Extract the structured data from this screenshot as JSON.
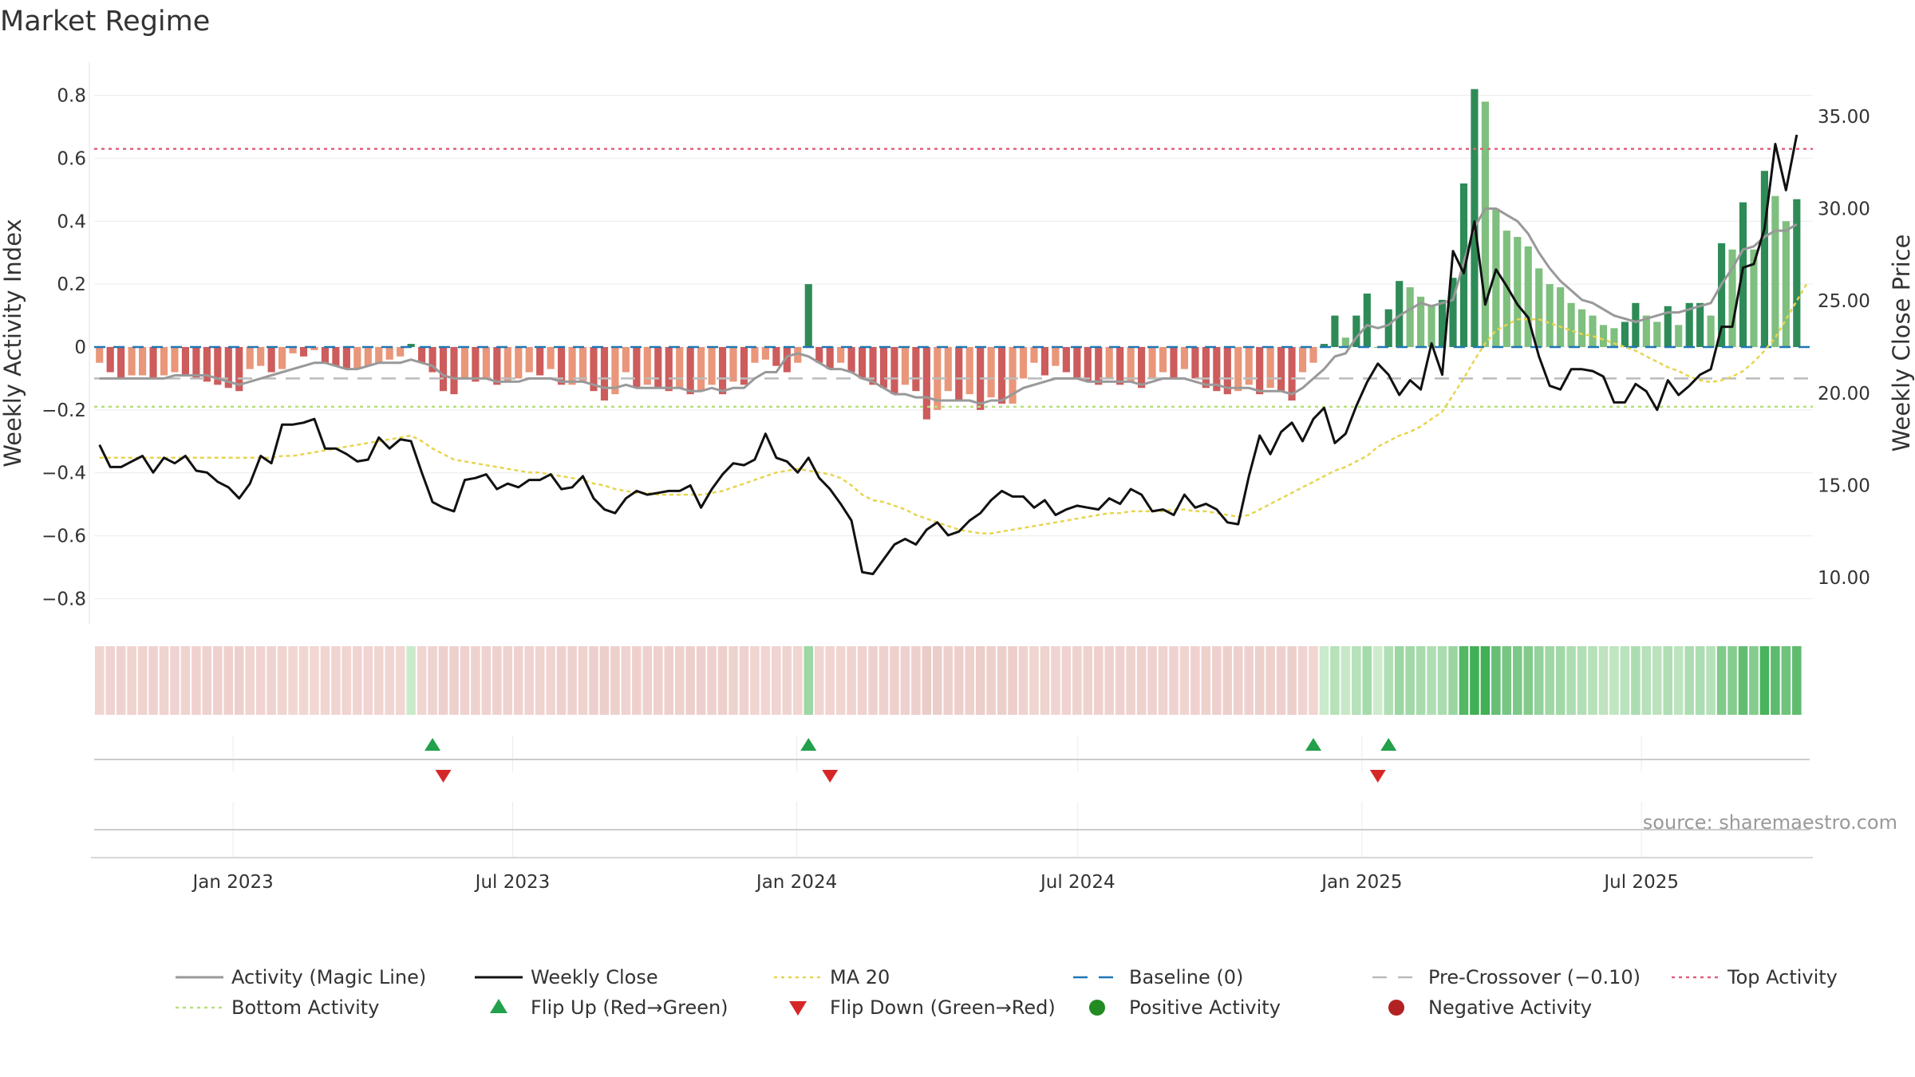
{
  "chart_data": {
    "type": "bar",
    "title": "Market Regime",
    "ylabel": "Weekly Activity Index",
    "y2label": "Weekly Close Price",
    "ylim": [
      -0.88,
      0.88
    ],
    "y2lim": [
      7.5,
      37.5
    ],
    "yticks": [
      0.8,
      0.6,
      0.4,
      0.2,
      0,
      -0.2,
      -0.4,
      -0.6,
      -0.8
    ],
    "ytick_labels": [
      "0.8",
      "0.6",
      "0.4",
      "0.2",
      "0",
      "−0.2",
      "−0.4",
      "−0.6",
      "−0.8"
    ],
    "y2ticks": [
      35,
      30,
      25,
      20,
      15,
      10
    ],
    "y2tick_labels": [
      "35.00",
      "30.00",
      "25.00",
      "20.00",
      "15.00",
      "10.00"
    ],
    "x_start": "2022-10-03",
    "x_end": "2025-10-20",
    "week_count": 160,
    "xtick_labels": [
      "Jan 2023",
      "Jul 2023",
      "Jan 2024",
      "Jul 2024",
      "Jan 2025",
      "Jul 2025"
    ],
    "xtick_dates": [
      "2023-01-01",
      "2023-07-01",
      "2024-01-01",
      "2024-07-01",
      "2025-01-01",
      "2025-07-01"
    ],
    "grid": true,
    "legend_position": "bottom",
    "weekly_close": [
      17.2,
      16.0,
      16.0,
      16.3,
      16.6,
      15.7,
      16.5,
      16.2,
      16.6,
      15.8,
      15.7,
      15.2,
      14.9,
      14.3,
      15.1,
      16.6,
      16.2,
      18.3,
      18.3,
      18.4,
      18.6,
      17.0,
      17.0,
      16.7,
      16.3,
      16.4,
      17.6,
      17.0,
      17.5,
      17.4,
      15.7,
      14.1,
      13.8,
      13.6,
      15.3,
      15.4,
      15.6,
      14.8,
      15.1,
      14.9,
      15.3,
      15.3,
      15.6,
      14.8,
      14.9,
      15.5,
      14.3,
      13.7,
      13.5,
      14.3,
      14.7,
      14.5,
      14.6,
      14.7,
      14.7,
      15.0,
      13.8,
      14.8,
      15.6,
      16.2,
      16.1,
      16.4,
      17.8,
      16.5,
      16.3,
      15.7,
      16.5,
      15.4,
      14.8,
      14.0,
      13.1,
      10.3,
      10.2,
      11.0,
      11.8,
      12.1,
      11.8,
      12.6,
      13.0,
      12.3,
      12.5,
      13.1,
      13.5,
      14.2,
      14.7,
      14.4,
      14.4,
      13.8,
      14.2,
      13.4,
      13.7,
      13.9,
      13.8,
      13.7,
      14.3,
      14.0,
      14.8,
      14.5,
      13.6,
      13.7,
      13.4,
      14.5,
      13.8,
      14.0,
      13.7,
      13.0,
      12.9,
      15.5,
      17.7,
      16.7,
      17.9,
      18.4,
      17.4,
      18.6,
      19.2,
      17.3,
      17.8,
      19.3,
      20.6,
      21.6,
      21.0,
      19.9,
      20.7,
      20.2,
      22.7,
      21.0,
      27.7,
      26.5,
      29.3,
      24.8,
      26.7,
      25.8,
      24.8,
      24.1,
      22.0,
      20.4,
      20.2,
      21.3,
      21.3,
      21.2,
      20.9,
      19.5,
      19.5,
      20.5,
      20.1,
      19.1,
      20.7,
      19.9,
      20.4,
      21.0,
      21.3,
      23.6,
      23.6,
      26.8,
      27.0,
      28.9,
      33.5,
      31.0,
      34.0
    ],
    "activity_index": [
      -0.05,
      -0.08,
      -0.1,
      -0.09,
      -0.09,
      -0.1,
      -0.09,
      -0.08,
      -0.09,
      -0.1,
      -0.11,
      -0.12,
      -0.13,
      -0.14,
      -0.07,
      -0.06,
      -0.08,
      -0.07,
      -0.02,
      -0.03,
      -0.01,
      -0.05,
      -0.06,
      -0.07,
      -0.07,
      -0.06,
      -0.05,
      -0.04,
      -0.03,
      0.01,
      -0.05,
      -0.08,
      -0.14,
      -0.15,
      -0.1,
      -0.11,
      -0.1,
      -0.12,
      -0.11,
      -0.1,
      -0.08,
      -0.09,
      -0.07,
      -0.12,
      -0.12,
      -0.11,
      -0.14,
      -0.17,
      -0.15,
      -0.08,
      -0.13,
      -0.12,
      -0.13,
      -0.14,
      -0.13,
      -0.15,
      -0.14,
      -0.12,
      -0.15,
      -0.11,
      -0.12,
      -0.05,
      -0.04,
      -0.06,
      -0.08,
      -0.05,
      0.2,
      -0.05,
      -0.07,
      -0.05,
      -0.08,
      -0.1,
      -0.12,
      -0.13,
      -0.15,
      -0.12,
      -0.14,
      -0.23,
      -0.2,
      -0.14,
      -0.17,
      -0.15,
      -0.2,
      -0.16,
      -0.18,
      -0.18,
      -0.1,
      -0.05,
      -0.09,
      -0.06,
      -0.08,
      -0.1,
      -0.11,
      -0.12,
      -0.1,
      -0.12,
      -0.11,
      -0.13,
      -0.1,
      -0.08,
      -0.1,
      -0.07,
      -0.1,
      -0.13,
      -0.14,
      -0.15,
      -0.14,
      -0.12,
      -0.15,
      -0.13,
      -0.14,
      -0.17,
      -0.08,
      -0.05,
      0.01,
      0.1,
      0.03,
      0.1,
      0.17,
      0.0,
      0.12,
      0.21,
      0.19,
      0.16,
      0.13,
      0.15,
      0.22,
      0.52,
      0.82,
      0.78,
      0.44,
      0.37,
      0.35,
      0.32,
      0.25,
      0.2,
      0.19,
      0.14,
      0.12,
      0.1,
      0.07,
      0.06,
      0.08,
      0.14,
      0.1,
      0.08,
      0.13,
      0.07,
      0.14,
      0.14,
      0.1,
      0.33,
      0.31,
      0.46,
      0.31,
      0.56,
      0.48,
      0.4,
      0.47
    ],
    "magic_line": [
      -0.1,
      -0.1,
      -0.1,
      -0.1,
      -0.1,
      -0.1,
      -0.1,
      -0.09,
      -0.09,
      -0.09,
      -0.09,
      -0.1,
      -0.11,
      -0.12,
      -0.11,
      -0.1,
      -0.09,
      -0.08,
      -0.07,
      -0.06,
      -0.05,
      -0.05,
      -0.06,
      -0.07,
      -0.07,
      -0.06,
      -0.05,
      -0.05,
      -0.05,
      -0.04,
      -0.05,
      -0.06,
      -0.09,
      -0.1,
      -0.1,
      -0.1,
      -0.1,
      -0.11,
      -0.11,
      -0.11,
      -0.1,
      -0.1,
      -0.1,
      -0.11,
      -0.11,
      -0.11,
      -0.12,
      -0.13,
      -0.13,
      -0.12,
      -0.13,
      -0.13,
      -0.13,
      -0.13,
      -0.13,
      -0.14,
      -0.14,
      -0.13,
      -0.14,
      -0.13,
      -0.13,
      -0.1,
      -0.08,
      -0.08,
      -0.03,
      -0.02,
      -0.03,
      -0.05,
      -0.07,
      -0.07,
      -0.08,
      -0.1,
      -0.11,
      -0.13,
      -0.15,
      -0.15,
      -0.16,
      -0.16,
      -0.17,
      -0.17,
      -0.17,
      -0.17,
      -0.18,
      -0.17,
      -0.17,
      -0.15,
      -0.13,
      -0.12,
      -0.11,
      -0.1,
      -0.1,
      -0.1,
      -0.11,
      -0.11,
      -0.11,
      -0.11,
      -0.11,
      -0.12,
      -0.11,
      -0.1,
      -0.1,
      -0.1,
      -0.11,
      -0.12,
      -0.12,
      -0.13,
      -0.13,
      -0.13,
      -0.14,
      -0.14,
      -0.14,
      -0.15,
      -0.13,
      -0.1,
      -0.07,
      -0.03,
      -0.02,
      0.03,
      0.07,
      0.06,
      0.07,
      0.1,
      0.12,
      0.14,
      0.13,
      0.14,
      0.15,
      0.27,
      0.38,
      0.44,
      0.44,
      0.42,
      0.4,
      0.36,
      0.3,
      0.25,
      0.21,
      0.18,
      0.15,
      0.14,
      0.12,
      0.1,
      0.09,
      0.08,
      0.09,
      0.1,
      0.11,
      0.11,
      0.12,
      0.13,
      0.14,
      0.2,
      0.25,
      0.31,
      0.32,
      0.35,
      0.37,
      0.37,
      0.39
    ],
    "ma20": [
      16.5,
      16.5,
      16.5,
      16.5,
      16.5,
      16.5,
      16.5,
      16.5,
      16.5,
      16.5,
      16.5,
      16.5,
      16.5,
      16.5,
      16.5,
      16.5,
      16.5,
      16.6,
      16.6,
      16.7,
      16.8,
      16.9,
      17.0,
      17.1,
      17.2,
      17.3,
      17.4,
      17.5,
      17.6,
      17.7,
      17.4,
      17.0,
      16.7,
      16.4,
      16.3,
      16.2,
      16.1,
      16.0,
      15.9,
      15.8,
      15.7,
      15.7,
      15.6,
      15.5,
      15.4,
      15.3,
      15.1,
      15.0,
      14.8,
      14.7,
      14.6,
      14.6,
      14.5,
      14.5,
      14.5,
      14.5,
      14.5,
      14.6,
      14.7,
      14.9,
      15.1,
      15.3,
      15.5,
      15.7,
      15.8,
      15.9,
      15.8,
      15.7,
      15.6,
      15.4,
      15.0,
      14.5,
      14.2,
      14.1,
      13.9,
      13.7,
      13.4,
      13.2,
      13.0,
      12.8,
      12.6,
      12.5,
      12.4,
      12.4,
      12.5,
      12.6,
      12.7,
      12.8,
      12.9,
      13.0,
      13.1,
      13.2,
      13.3,
      13.4,
      13.5,
      13.5,
      13.6,
      13.6,
      13.6,
      13.6,
      13.7,
      13.7,
      13.6,
      13.6,
      13.5,
      13.4,
      13.3,
      13.4,
      13.7,
      14.0,
      14.3,
      14.6,
      14.9,
      15.2,
      15.5,
      15.8,
      16.0,
      16.3,
      16.6,
      17.1,
      17.4,
      17.7,
      17.9,
      18.2,
      18.6,
      19.0,
      19.9,
      20.8,
      21.8,
      22.7,
      23.4,
      23.7,
      24.0,
      24.0,
      24.0,
      23.8,
      23.6,
      23.4,
      23.2,
      23.1,
      22.9,
      22.7,
      22.5,
      22.3,
      22.0,
      21.7,
      21.4,
      21.2,
      20.9,
      20.7,
      20.6,
      20.7,
      20.9,
      21.2,
      21.7,
      22.3,
      23.0,
      24.0,
      25.0,
      26.0
    ],
    "baseline": 0,
    "pre_crossover": -0.1,
    "top_activity": 0.63,
    "bottom_activity": -0.19,
    "flip_up_weeks": [
      31,
      66,
      113,
      120
    ],
    "flip_down_weeks": [
      32,
      68,
      119
    ],
    "colors": {
      "positive_strong": "#2e8b57",
      "positive_light": "#7fbf7f",
      "negative_strong": "#cd5c5c",
      "negative_light": "#e9967a",
      "magic_line": "#999999",
      "weekly_close": "#111111",
      "ma20": "#e8d44d",
      "baseline": "#1f77b4",
      "pre_crossover": "#bbbbbb",
      "top_activity": "#e0607e",
      "bottom_activity": "#b5e07a",
      "flip_up": "#22a04b",
      "flip_down": "#d62728",
      "positive_activity": "#228b22",
      "negative_activity": "#b22222"
    },
    "legend": [
      {
        "label": "Activity (Magic Line)",
        "key": "magic_line",
        "style": "line"
      },
      {
        "label": "Weekly Close",
        "key": "weekly_close",
        "style": "line"
      },
      {
        "label": "MA 20",
        "key": "ma20",
        "style": "dotted"
      },
      {
        "label": "Baseline (0)",
        "key": "baseline",
        "style": "dashed"
      },
      {
        "label": "Pre-Crossover (−0.10)",
        "key": "pre_crossover",
        "style": "dashed"
      },
      {
        "label": "Top Activity",
        "key": "top_activity",
        "style": "dotted"
      },
      {
        "label": "Bottom Activity",
        "key": "bottom_activity",
        "style": "dotted"
      },
      {
        "label": "Flip Up (Red→Green)",
        "key": "flip_up",
        "style": "tri-up"
      },
      {
        "label": "Flip Down (Green→Red)",
        "key": "flip_down",
        "style": "tri-down"
      },
      {
        "label": "Positive Activity",
        "key": "positive_activity",
        "style": "dot"
      },
      {
        "label": "Negative Activity",
        "key": "negative_activity",
        "style": "dot"
      }
    ],
    "source": "source: sharemaestro.com"
  }
}
